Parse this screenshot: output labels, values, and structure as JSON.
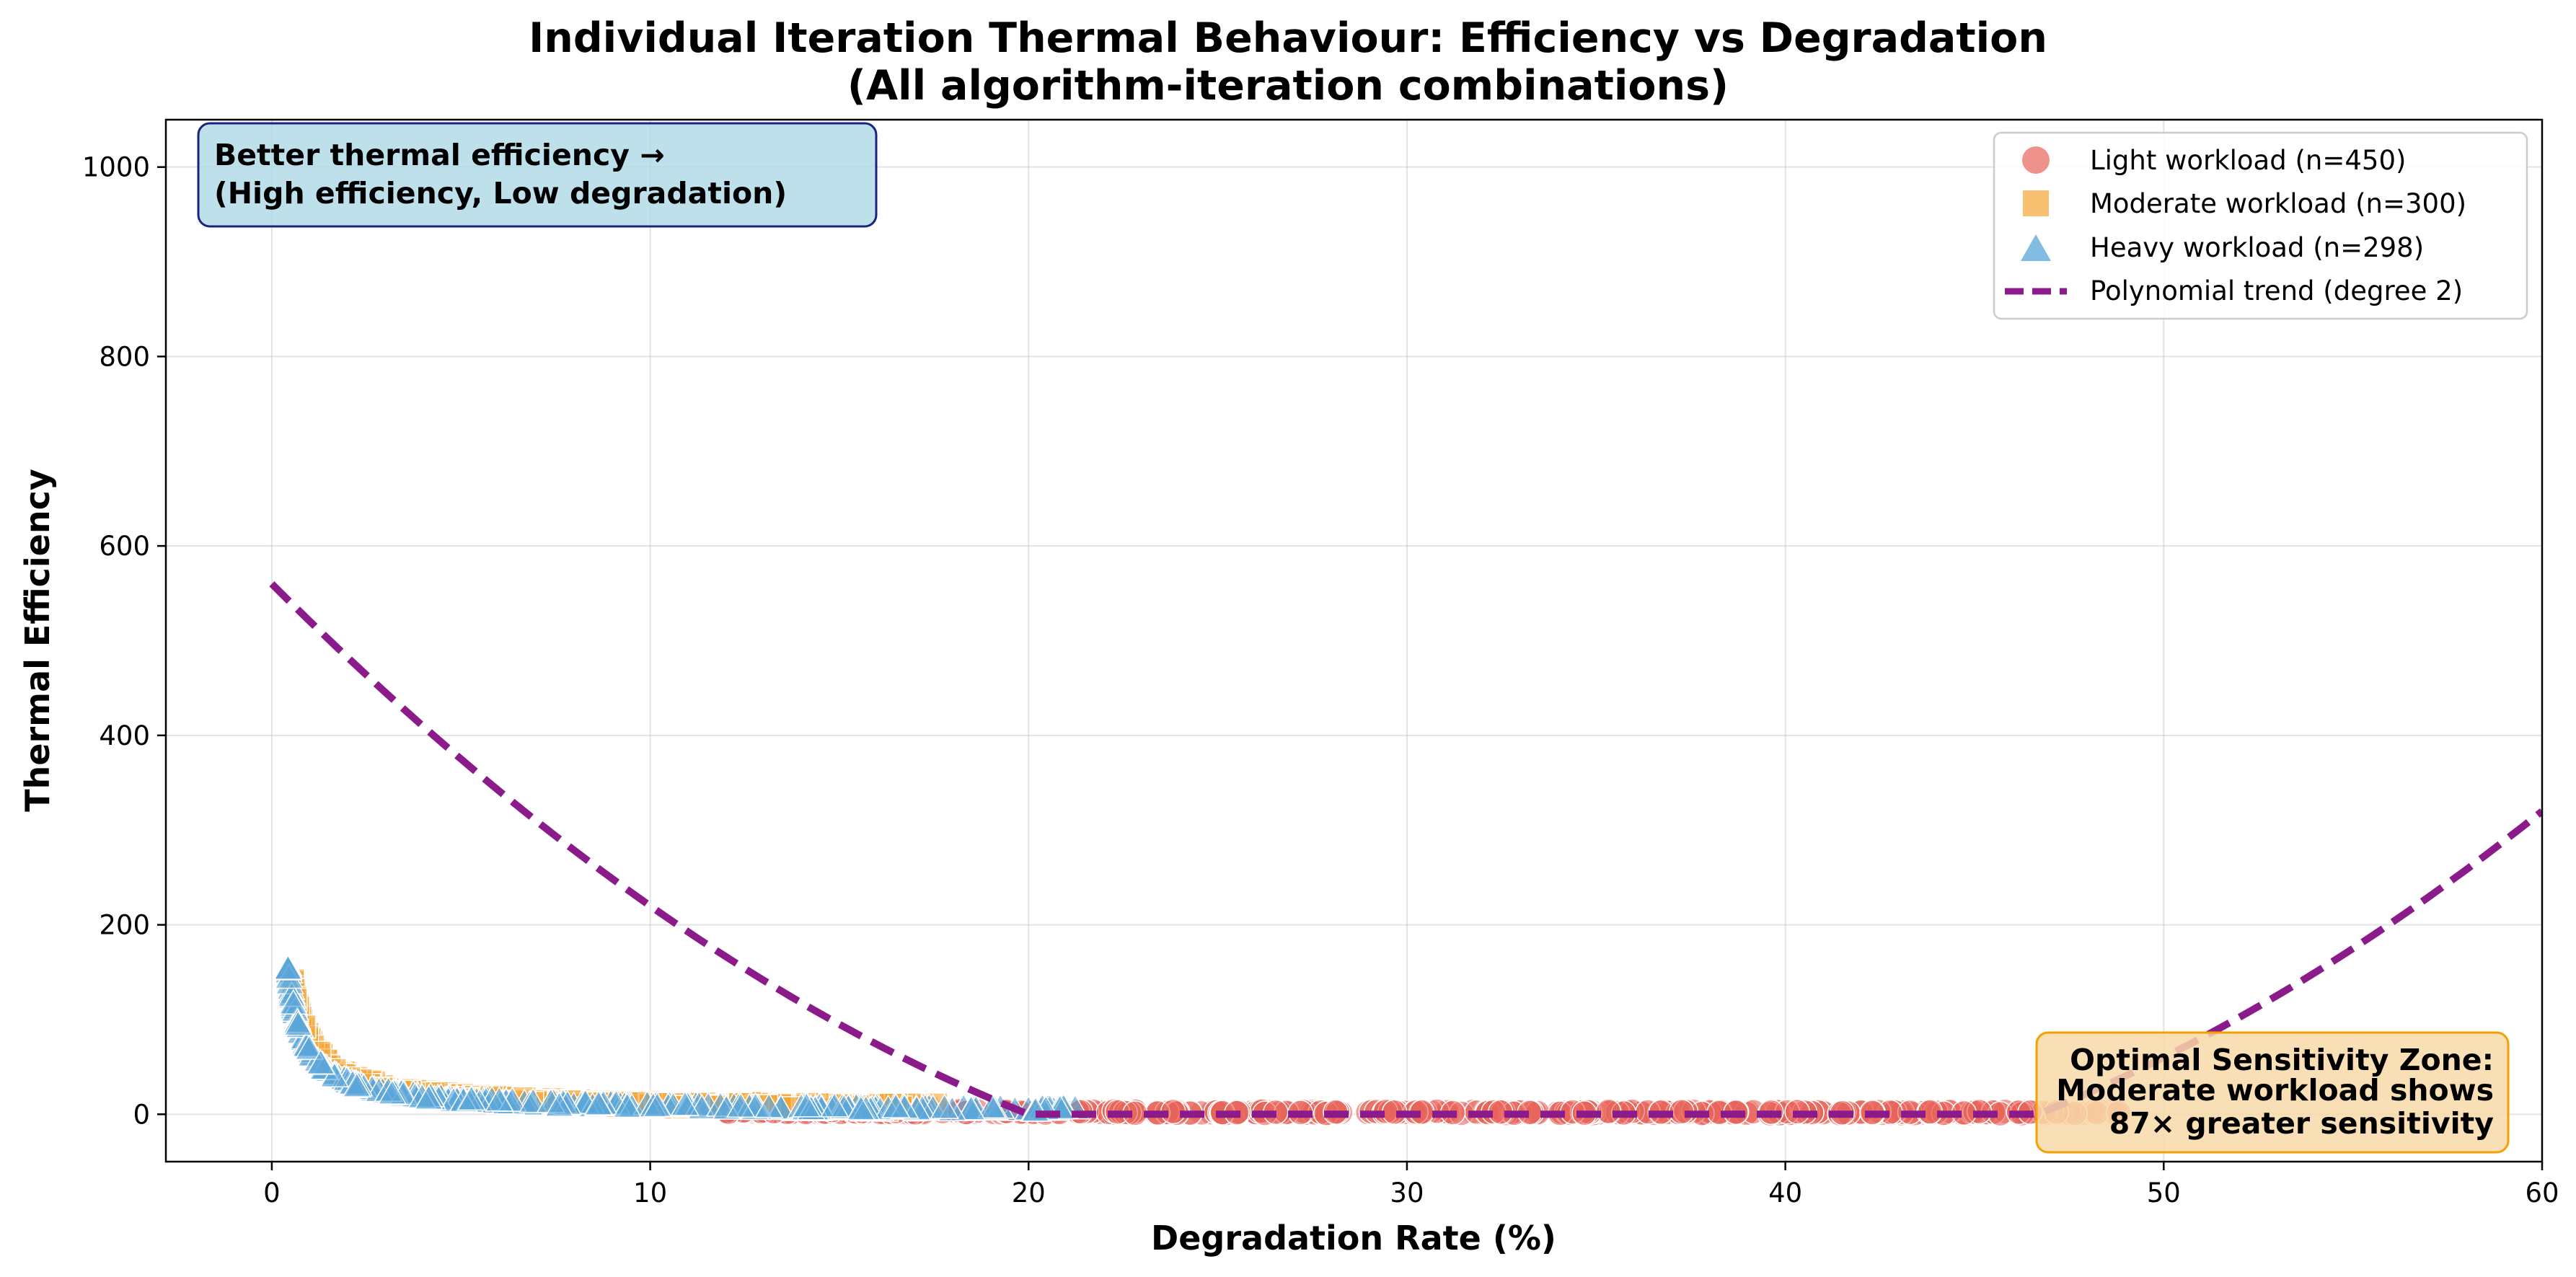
{
  "chart_data": {
    "type": "scatter",
    "title_line1": "Individual Iteration Thermal Behaviour: Efficiency vs Degradation",
    "title_line2": "(All algorithm-iteration combinations)",
    "xlabel": "Degradation Rate (%)",
    "ylabel": "Thermal Efficiency",
    "xlim": [
      -2.8,
      60
    ],
    "ylim": [
      -50,
      1050
    ],
    "xticks": [
      0,
      10,
      20,
      30,
      40,
      50,
      60
    ],
    "yticks": [
      0,
      200,
      400,
      600,
      800,
      1000
    ],
    "grid": true,
    "legend_position": "top-right",
    "series": [
      {
        "name": "Light workload (n=450)",
        "marker": "circle",
        "color": "#e8645a",
        "count": 450
      },
      {
        "name": "Moderate workload (n=300)",
        "marker": "square",
        "color": "#f5a534",
        "count": 300
      },
      {
        "name": "Heavy workload (n=298)",
        "marker": "triangle",
        "color": "#5aa6d9",
        "count": 298
      }
    ],
    "trend": {
      "name": "Polynomial trend (degree 2)",
      "color": "#8b1a8b",
      "degree": 2,
      "coefficients": [
        0.6,
        -40,
        560
      ],
      "clip_min": 0
    },
    "annotations": {
      "top_left_line1": "Better thermal efficiency →",
      "top_left_line2": "(High efficiency, Low degradation)",
      "bottom_right_line1": "Optimal Sensitivity Zone:",
      "bottom_right_line2": "Moderate workload shows",
      "bottom_right_line3": "87× greater sensitivity"
    }
  }
}
